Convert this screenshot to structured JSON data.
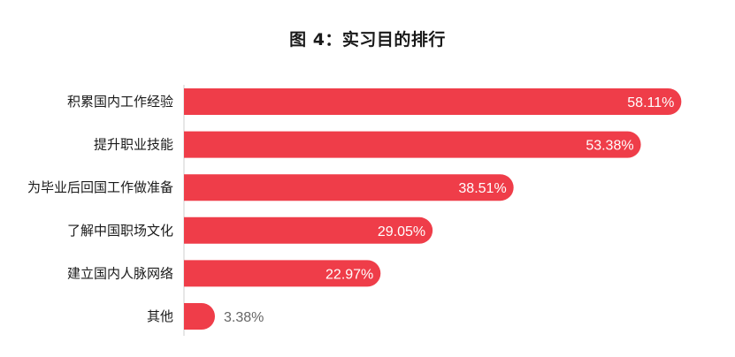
{
  "chart_data": {
    "type": "bar",
    "orientation": "horizontal",
    "title": "图 4：实习目的排行",
    "categories": [
      "积累国内工作经验",
      "提升职业技能",
      "为毕业后回国工作做准备",
      "了解中国职场文化",
      "建立国内人脉网络",
      "其他"
    ],
    "values": [
      58.11,
      53.38,
      38.51,
      29.05,
      22.97,
      3.38
    ],
    "value_labels": [
      "58.11%",
      "53.38%",
      "38.51%",
      "29.05%",
      "22.97%",
      "3.38%"
    ],
    "xlim": [
      0,
      62
    ],
    "grid": false,
    "legend": "none",
    "bar_color": "#ef3d49"
  }
}
